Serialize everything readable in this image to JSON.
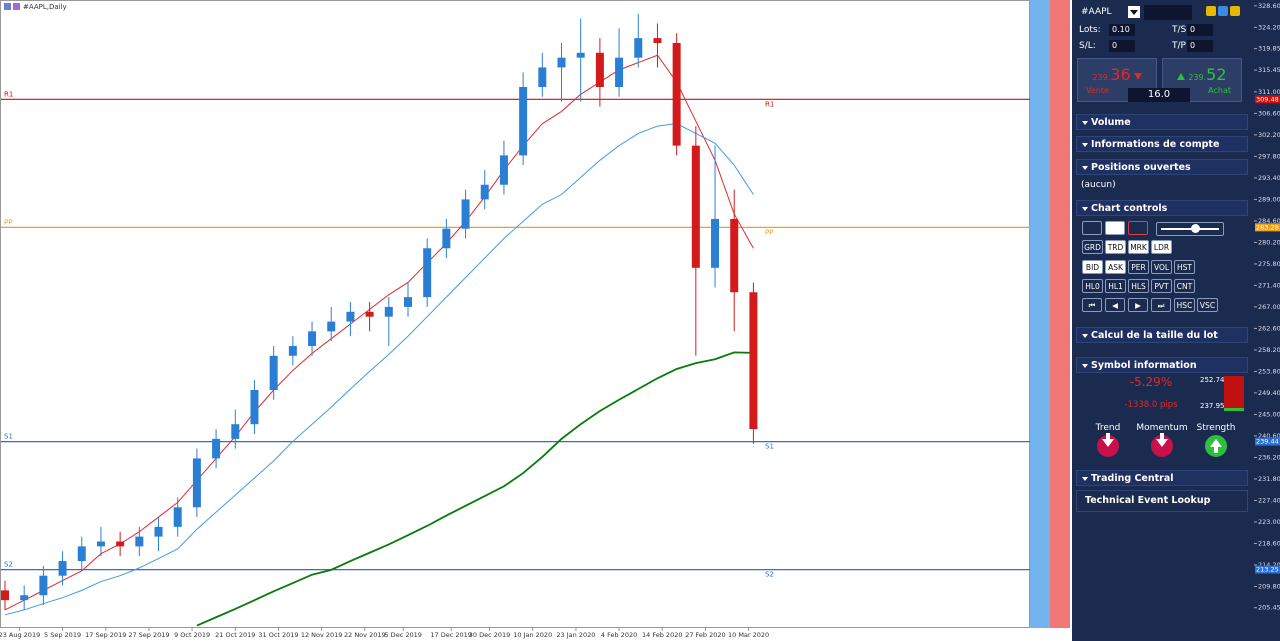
{
  "chart_data": {
    "type": "candlestick",
    "title": "#AAPL,Daily",
    "x": [
      0,
      4,
      8,
      12,
      16,
      20,
      24,
      28,
      32,
      36,
      40,
      44,
      48,
      52,
      56,
      60,
      64,
      68,
      72,
      76,
      80,
      84,
      88,
      92,
      96,
      100,
      104,
      108,
      112,
      116,
      120,
      124,
      128,
      132,
      136,
      140,
      144,
      148,
      152,
      156
    ],
    "open": [
      209,
      207,
      208,
      212,
      215,
      218,
      219,
      218,
      220,
      222,
      226,
      236,
      240,
      243,
      250,
      257,
      259,
      262,
      264,
      266,
      265,
      267,
      269,
      279,
      283,
      289,
      292,
      298,
      312,
      316,
      318,
      319,
      312,
      318,
      322,
      321,
      300,
      275,
      285,
      270
    ],
    "high": [
      211,
      210,
      214,
      217,
      220,
      222,
      221,
      222,
      224,
      228,
      238,
      242,
      246,
      252,
      259,
      261,
      264,
      267,
      268,
      268,
      269,
      272,
      281,
      285,
      291,
      295,
      301,
      315,
      319,
      321,
      326,
      322,
      324,
      327,
      325,
      323,
      304,
      300,
      291,
      272
    ],
    "low": [
      205,
      205,
      206,
      210,
      213,
      216,
      216,
      216,
      217,
      220,
      224,
      234,
      238,
      241,
      248,
      255,
      257,
      260,
      261,
      262,
      259,
      265,
      267,
      277,
      281,
      287,
      290,
      296,
      310,
      309,
      309,
      308,
      310,
      316,
      316,
      298,
      257,
      271,
      262,
      239
    ],
    "close": [
      207,
      208,
      212,
      215,
      218,
      219,
      218,
      220,
      222,
      226,
      236,
      240,
      243,
      250,
      257,
      259,
      262,
      264,
      266,
      265,
      267,
      269,
      279,
      283,
      289,
      292,
      298,
      312,
      316,
      318,
      319,
      312,
      318,
      322,
      321,
      300,
      275,
      285,
      270,
      242
    ],
    "up_color": "#2a7fd4",
    "down_color": "#d41b1b",
    "overlays": [
      {
        "color": "#e02a2a",
        "values": [
          205,
          207,
          209,
          211,
          213,
          216.5,
          218.5,
          221,
          224,
          227,
          231.5,
          236,
          240.5,
          245.5,
          250,
          254,
          257.5,
          260.5,
          263.5,
          266.5,
          269.5,
          272,
          276,
          280,
          284.5,
          289.5,
          295,
          300,
          304.5,
          307,
          310.5,
          313,
          315.5,
          317,
          318.5,
          313,
          305,
          297,
          286,
          279
        ]
      },
      {
        "color": "#3f9be0",
        "values": [
          204,
          205,
          206.3,
          207.5,
          209,
          210.8,
          212,
          213.6,
          215.5,
          217.5,
          221.5,
          225,
          228.5,
          232,
          235.5,
          239.5,
          243,
          246.5,
          250.2,
          253.8,
          257.3,
          261,
          265,
          269,
          273,
          277,
          281,
          284.5,
          288,
          290,
          293.5,
          297,
          300,
          302.5,
          304,
          304.5,
          302.5,
          300.5,
          296,
          290
        ]
      },
      {
        "color": "#0a7a0a",
        "values": [
          null,
          null,
          null,
          null,
          null,
          null,
          null,
          null,
          null,
          null,
          201.8,
          203.5,
          205.2,
          207,
          208.8,
          210.5,
          212.2,
          213.2,
          215,
          216.7,
          218.4,
          220.3,
          222.2,
          224.3,
          226.3,
          228.3,
          230.3,
          233,
          236.3,
          240,
          243,
          245.7,
          248,
          250.2,
          252.4,
          254.3,
          255.5,
          256.3,
          257.7,
          257.6
        ]
      }
    ],
    "levels": [
      {
        "label": "R1",
        "value": 309.48,
        "value_label": "309.48",
        "color": "#cc1010"
      },
      {
        "label": "PP",
        "value": 283.28,
        "value_label": "283.28",
        "color": "#f0a020"
      },
      {
        "label": "S1",
        "value": 239.44,
        "value_label": "239.44",
        "color": "#2a6fd4"
      },
      {
        "label": "S2",
        "value": 213.25,
        "value_label": "213.25",
        "color": "#2a6fd4"
      }
    ],
    "xlim": [
      0,
      158
    ],
    "xticks": [
      {
        "value": 3,
        "label": "23 Aug 2019"
      },
      {
        "value": 12,
        "label": "5 Sep 2019"
      },
      {
        "value": 21,
        "label": "17 Sep 2019"
      },
      {
        "value": 30,
        "label": "27 Sep 2019"
      },
      {
        "value": 39,
        "label": "9 Oct 2019"
      },
      {
        "value": 48,
        "label": "21 Oct 2019"
      },
      {
        "value": 57,
        "label": "31 Oct 2019"
      },
      {
        "value": 66,
        "label": "12 Nov 2019"
      },
      {
        "value": 75,
        "label": "22 Nov 2019"
      },
      {
        "value": 83,
        "label": "5 Dec 2019"
      },
      {
        "value": 93,
        "label": "17 Dec 2019"
      },
      {
        "value": 101,
        "label": "30 Dec 2019"
      },
      {
        "value": 110,
        "label": "10 Jan 2020"
      },
      {
        "value": 119,
        "label": "23 Jan 2020"
      },
      {
        "value": 128,
        "label": "4 Feb 2020"
      },
      {
        "value": 137,
        "label": "14 Feb 2020"
      },
      {
        "value": 146,
        "label": "27 Feb 2020"
      },
      {
        "value": 155,
        "label": "10 Mar 2020"
      }
    ],
    "ylim": [
      201.3,
      329.8
    ],
    "yticks": [
      {
        "value": 328.6,
        "label": "328.60"
      },
      {
        "value": 324.2,
        "label": "324.20"
      },
      {
        "value": 319.85,
        "label": "319.85"
      },
      {
        "value": 315.45,
        "label": "315.45"
      },
      {
        "value": 311,
        "label": "311.00"
      },
      {
        "value": 306.6,
        "label": "306.60"
      },
      {
        "value": 302.2,
        "label": "302.20"
      },
      {
        "value": 297.8,
        "label": "297.80"
      },
      {
        "value": 293.4,
        "label": "293.40"
      },
      {
        "value": 289,
        "label": "289.00"
      },
      {
        "value": 284.6,
        "label": "284.60"
      },
      {
        "value": 280.2,
        "label": "280.20"
      },
      {
        "value": 275.8,
        "label": "275.80"
      },
      {
        "value": 271.4,
        "label": "271.40"
      },
      {
        "value": 267,
        "label": "267.00"
      },
      {
        "value": 262.6,
        "label": "262.60"
      },
      {
        "value": 258.2,
        "label": "258.20"
      },
      {
        "value": 253.8,
        "label": "253.80"
      },
      {
        "value": 249.4,
        "label": "249.40"
      },
      {
        "value": 245,
        "label": "245.00"
      },
      {
        "value": 240.6,
        "label": "240.60"
      },
      {
        "value": 236.2,
        "label": "236.20"
      },
      {
        "value": 231.8,
        "label": "231.80"
      },
      {
        "value": 227.4,
        "label": "227.40"
      },
      {
        "value": 223,
        "label": "223.00"
      },
      {
        "value": 218.6,
        "label": "218.60"
      },
      {
        "value": 214.2,
        "label": "214.20"
      },
      {
        "value": 209.8,
        "label": "209.80"
      },
      {
        "value": 205.45,
        "label": "205.45"
      }
    ]
  },
  "panel": {
    "symbol": "#AAPL",
    "lots_label": "Lots:",
    "lots": "0.10",
    "ts_label": "T/S:",
    "ts": "0",
    "sl_label": "S/L:",
    "sl": "0",
    "tp_label": "T/P:",
    "tp": "0",
    "sell_small": "239.",
    "sell_big": "36",
    "buy_small": "239.",
    "buy_big": "52",
    "sell_label": "Vente",
    "buy_label": "Achat",
    "spread": "16.0",
    "sections": [
      "Volume",
      "Informations de compte",
      "Positions ouvertes",
      "Chart controls",
      "Calcul de la taille du lot",
      "Symbol information",
      "Trading Central"
    ],
    "positions_empty": "(aucun)",
    "buttons": [
      [
        {
          "label": "GRD",
          "on": false
        },
        {
          "label": "TRD",
          "on": true
        },
        {
          "label": "MRK",
          "on": true
        },
        {
          "label": "LDR",
          "on": true
        }
      ],
      [
        {
          "label": "BID",
          "on": true
        },
        {
          "label": "ASK",
          "on": true
        },
        {
          "label": "PER",
          "on": false
        },
        {
          "label": "VOL",
          "on": false
        },
        {
          "label": "HST",
          "on": false
        }
      ],
      [
        {
          "label": "HL0",
          "on": false
        },
        {
          "label": "HL1",
          "on": false
        },
        {
          "label": "HLS",
          "on": false
        },
        {
          "label": "PVT",
          "on": false
        },
        {
          "label": "CNT",
          "on": false
        }
      ],
      [
        {
          "label": "HSC",
          "on": false
        },
        {
          "label": "VSC",
          "on": false
        }
      ]
    ],
    "change_pct": "-5.29%",
    "change_pips": "-1338.0 pips",
    "range_high": "252.74",
    "range_low": "237.95",
    "indicators": [
      "Trend",
      "Momentum",
      "Strength"
    ],
    "lookup": "Technical Event Lookup"
  }
}
